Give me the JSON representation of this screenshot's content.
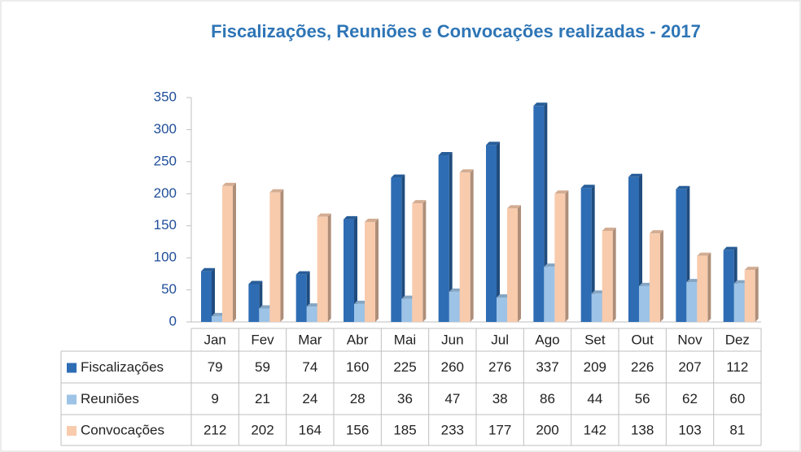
{
  "chart_data": {
    "type": "bar",
    "title": "Fiscalizações, Reuniões e Convocações realizadas - 2017",
    "categories": [
      "Jan",
      "Fev",
      "Mar",
      "Abr",
      "Mai",
      "Jun",
      "Jul",
      "Ago",
      "Set",
      "Out",
      "Nov",
      "Dez"
    ],
    "series": [
      {
        "name": "Fiscalizações",
        "color": "#2e6db4",
        "values": [
          79,
          59,
          74,
          160,
          225,
          260,
          276,
          337,
          209,
          226,
          207,
          112
        ]
      },
      {
        "name": "Reuniões",
        "color": "#9dc3e6",
        "values": [
          9,
          21,
          24,
          28,
          36,
          47,
          38,
          86,
          44,
          56,
          62,
          60
        ]
      },
      {
        "name": "Convocações",
        "color": "#f8cbad",
        "values": [
          212,
          202,
          164,
          156,
          185,
          233,
          177,
          200,
          142,
          138,
          103,
          81
        ]
      }
    ],
    "ylim": [
      0,
      350
    ],
    "yticks": [
      0,
      50,
      100,
      150,
      200,
      250,
      300,
      350
    ],
    "grid": false
  }
}
